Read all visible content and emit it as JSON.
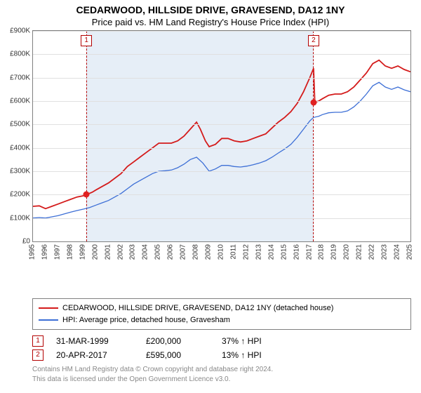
{
  "title": "CEDARWOOD, HILLSIDE DRIVE, GRAVESEND, DA12 1NY",
  "subtitle": "Price paid vs. HM Land Registry's House Price Index (HPI)",
  "chart": {
    "type": "line",
    "ylim": [
      0,
      900000
    ],
    "ytick_step": 100000,
    "ytick_labels": [
      "£0",
      "£100K",
      "£200K",
      "£300K",
      "£400K",
      "£500K",
      "£600K",
      "£700K",
      "£800K",
      "£900K"
    ],
    "x_start_year": 1995,
    "x_end_year": 2025,
    "x_labels": [
      "1995",
      "1996",
      "1997",
      "1998",
      "1999",
      "2000",
      "2001",
      "2002",
      "2003",
      "2004",
      "2005",
      "2006",
      "2007",
      "2008",
      "2009",
      "2010",
      "2011",
      "2012",
      "2013",
      "2014",
      "2015",
      "2016",
      "2017",
      "2018",
      "2019",
      "2020",
      "2021",
      "2022",
      "2023",
      "2024",
      "2025"
    ],
    "background_color": "#ffffff",
    "shade_color": "#e6eef7",
    "grid_color": "#e0e0e0",
    "border_color": "#808080",
    "shade_span_years": [
      1999.25,
      2017.3
    ],
    "series": [
      {
        "name": "CEDARWOOD, HILLSIDE DRIVE, GRAVESEND, DA12 1NY (detached house)",
        "color": "#d41b1b",
        "line_width": 1.8,
        "points": [
          [
            1995.0,
            150000
          ],
          [
            1995.5,
            152000
          ],
          [
            1996.0,
            140000
          ],
          [
            1996.5,
            150000
          ],
          [
            1997.0,
            160000
          ],
          [
            1997.5,
            170000
          ],
          [
            1998.0,
            180000
          ],
          [
            1998.5,
            190000
          ],
          [
            1999.0,
            195000
          ],
          [
            1999.25,
            200000
          ],
          [
            1999.7,
            210000
          ],
          [
            2000.0,
            220000
          ],
          [
            2000.5,
            235000
          ],
          [
            2001.0,
            250000
          ],
          [
            2001.5,
            270000
          ],
          [
            2002.0,
            290000
          ],
          [
            2002.5,
            320000
          ],
          [
            2003.0,
            340000
          ],
          [
            2003.5,
            360000
          ],
          [
            2004.0,
            380000
          ],
          [
            2004.5,
            400000
          ],
          [
            2005.0,
            420000
          ],
          [
            2005.5,
            420000
          ],
          [
            2006.0,
            420000
          ],
          [
            2006.5,
            430000
          ],
          [
            2007.0,
            450000
          ],
          [
            2007.5,
            480000
          ],
          [
            2008.0,
            510000
          ],
          [
            2008.3,
            480000
          ],
          [
            2008.7,
            430000
          ],
          [
            2009.0,
            405000
          ],
          [
            2009.5,
            415000
          ],
          [
            2010.0,
            440000
          ],
          [
            2010.5,
            440000
          ],
          [
            2011.0,
            430000
          ],
          [
            2011.5,
            425000
          ],
          [
            2012.0,
            430000
          ],
          [
            2012.5,
            440000
          ],
          [
            2013.0,
            450000
          ],
          [
            2013.5,
            460000
          ],
          [
            2014.0,
            485000
          ],
          [
            2014.5,
            510000
          ],
          [
            2015.0,
            530000
          ],
          [
            2015.5,
            555000
          ],
          [
            2016.0,
            590000
          ],
          [
            2016.5,
            640000
          ],
          [
            2017.0,
            700000
          ],
          [
            2017.3,
            740000
          ],
          [
            2017.4,
            595000
          ],
          [
            2017.7,
            600000
          ],
          [
            2018.0,
            610000
          ],
          [
            2018.5,
            625000
          ],
          [
            2019.0,
            630000
          ],
          [
            2019.5,
            630000
          ],
          [
            2020.0,
            640000
          ],
          [
            2020.5,
            660000
          ],
          [
            2021.0,
            690000
          ],
          [
            2021.5,
            720000
          ],
          [
            2022.0,
            760000
          ],
          [
            2022.5,
            775000
          ],
          [
            2023.0,
            750000
          ],
          [
            2023.5,
            740000
          ],
          [
            2024.0,
            750000
          ],
          [
            2024.5,
            735000
          ],
          [
            2025.0,
            725000
          ]
        ]
      },
      {
        "name": "HPI: Average price, detached house, Gravesham",
        "color": "#3d6fd6",
        "line_width": 1.3,
        "points": [
          [
            1995.0,
            100000
          ],
          [
            1995.5,
            102000
          ],
          [
            1996.0,
            100000
          ],
          [
            1996.5,
            105000
          ],
          [
            1997.0,
            110000
          ],
          [
            1997.5,
            118000
          ],
          [
            1998.0,
            125000
          ],
          [
            1998.5,
            132000
          ],
          [
            1999.0,
            138000
          ],
          [
            1999.5,
            145000
          ],
          [
            2000.0,
            155000
          ],
          [
            2000.5,
            165000
          ],
          [
            2001.0,
            175000
          ],
          [
            2001.5,
            190000
          ],
          [
            2002.0,
            205000
          ],
          [
            2002.5,
            225000
          ],
          [
            2003.0,
            245000
          ],
          [
            2003.5,
            260000
          ],
          [
            2004.0,
            275000
          ],
          [
            2004.5,
            290000
          ],
          [
            2005.0,
            300000
          ],
          [
            2005.5,
            302000
          ],
          [
            2006.0,
            305000
          ],
          [
            2006.5,
            315000
          ],
          [
            2007.0,
            330000
          ],
          [
            2007.5,
            350000
          ],
          [
            2008.0,
            360000
          ],
          [
            2008.5,
            335000
          ],
          [
            2009.0,
            300000
          ],
          [
            2009.5,
            310000
          ],
          [
            2010.0,
            325000
          ],
          [
            2010.5,
            325000
          ],
          [
            2011.0,
            320000
          ],
          [
            2011.5,
            318000
          ],
          [
            2012.0,
            322000
          ],
          [
            2012.5,
            328000
          ],
          [
            2013.0,
            335000
          ],
          [
            2013.5,
            345000
          ],
          [
            2014.0,
            360000
          ],
          [
            2014.5,
            378000
          ],
          [
            2015.0,
            395000
          ],
          [
            2015.5,
            415000
          ],
          [
            2016.0,
            445000
          ],
          [
            2016.5,
            480000
          ],
          [
            2017.0,
            515000
          ],
          [
            2017.3,
            530000
          ],
          [
            2017.7,
            535000
          ],
          [
            2018.0,
            542000
          ],
          [
            2018.5,
            550000
          ],
          [
            2019.0,
            552000
          ],
          [
            2019.5,
            552000
          ],
          [
            2020.0,
            558000
          ],
          [
            2020.5,
            575000
          ],
          [
            2021.0,
            600000
          ],
          [
            2021.5,
            630000
          ],
          [
            2022.0,
            665000
          ],
          [
            2022.5,
            680000
          ],
          [
            2023.0,
            660000
          ],
          [
            2023.5,
            650000
          ],
          [
            2024.0,
            660000
          ],
          [
            2024.5,
            648000
          ],
          [
            2025.0,
            640000
          ]
        ]
      }
    ],
    "markers": [
      {
        "n": "1",
        "year": 1999.25,
        "value": 200000
      },
      {
        "n": "2",
        "year": 2017.3,
        "value": 595000
      }
    ]
  },
  "legend": {
    "items": [
      {
        "color": "#d41b1b",
        "label": "CEDARWOOD, HILLSIDE DRIVE, GRAVESEND, DA12 1NY (detached house)"
      },
      {
        "color": "#3d6fd6",
        "label": "HPI: Average price, detached house, Gravesham"
      }
    ]
  },
  "sales": [
    {
      "n": "1",
      "date": "31-MAR-1999",
      "price": "£200,000",
      "delta": "37% ↑ HPI"
    },
    {
      "n": "2",
      "date": "20-APR-2017",
      "price": "£595,000",
      "delta": "13% ↑ HPI"
    }
  ],
  "footer": {
    "line1": "Contains HM Land Registry data © Crown copyright and database right 2024.",
    "line2": "This data is licensed under the Open Government Licence v3.0."
  }
}
